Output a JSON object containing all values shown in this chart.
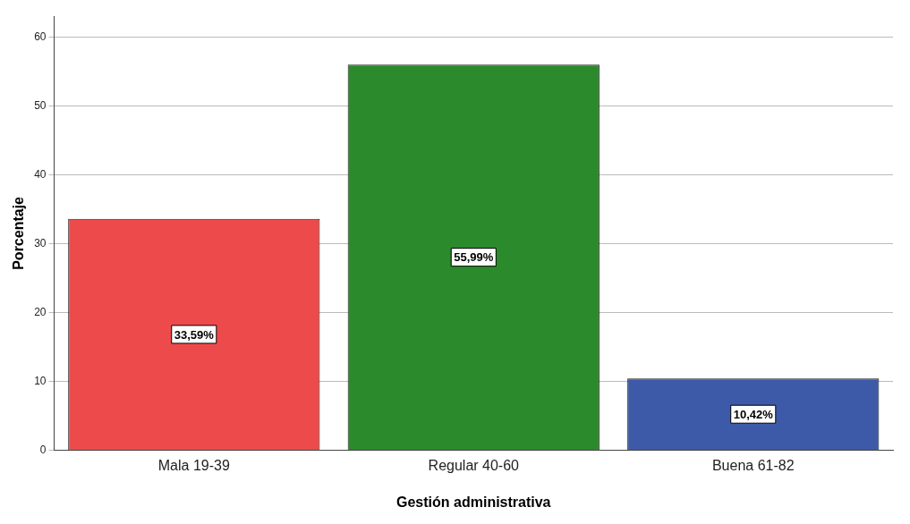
{
  "chart_data": {
    "type": "bar",
    "xlabel": "Gestión administrativa",
    "ylabel": "Porcentaje",
    "categories": [
      "Mala 19-39",
      "Regular 40-60",
      "Buena 61-82"
    ],
    "values": [
      33.59,
      55.99,
      10.42
    ],
    "colors": [
      "#ed4b4b",
      "#2b8a2b",
      "#3d5aa8"
    ],
    "value_labels": [
      "33,59%",
      "55,99%",
      "10,42%"
    ],
    "ylim": [
      0,
      63
    ],
    "yticks": [
      0,
      10,
      20,
      30,
      40,
      50,
      60
    ],
    "grid": "y",
    "legend": false
  }
}
